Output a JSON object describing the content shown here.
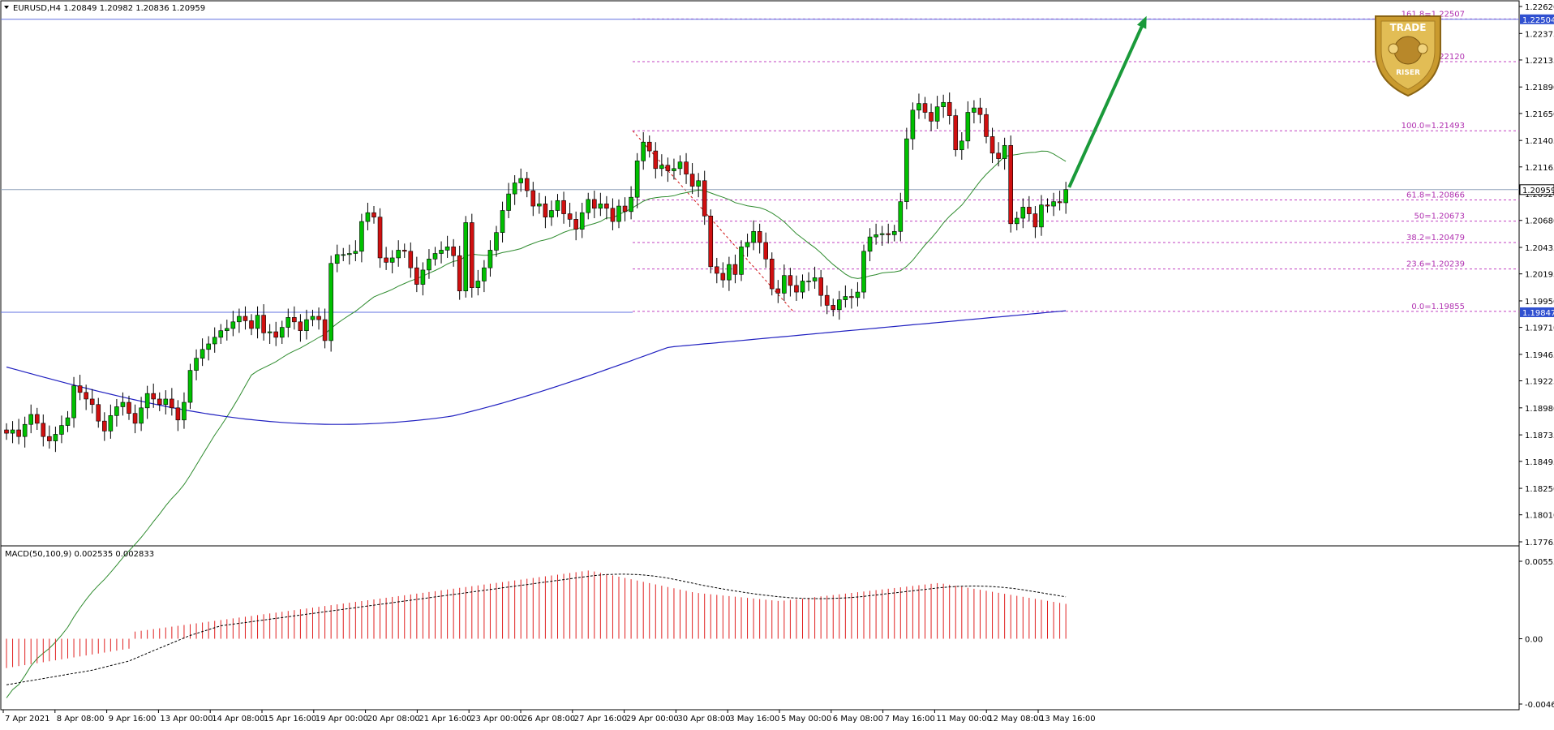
{
  "header": {
    "symbol_info": "EURUSD,H4  1.20849 1.20982 1.20836 1.20959",
    "macd_info": "MACD(50,100,9) 0.002535 0.002833"
  },
  "price_axis": {
    "ticks": [
      "1.22620",
      "1.22375",
      "1.22135",
      "1.21890",
      "1.21650",
      "1.21405",
      "1.21165",
      "1.20920",
      "1.20680",
      "1.20435",
      "1.20195",
      "1.19950",
      "1.19710",
      "1.19465",
      "1.19225",
      "1.18980",
      "1.18735",
      "1.18495",
      "1.18250",
      "1.18010",
      "1.17765"
    ],
    "price_max": 1.2262,
    "price_min": 1.17765,
    "current_price_label": "1.20959",
    "current_price": 1.20959,
    "hline_upper_label": "1.22504",
    "hline_upper": 1.22504,
    "hline_lower_label": "1.19847",
    "hline_lower": 1.19847
  },
  "macd_axis": {
    "ticks": [
      "0.005553",
      "0.00",
      "-0.00468"
    ],
    "max": 0.005553,
    "min": -0.00468
  },
  "time_axis": {
    "labels": [
      "7 Apr 2021",
      "8 Apr 08:00",
      "9 Apr 16:00",
      "13 Apr 00:00",
      "14 Apr 08:00",
      "15 Apr 16:00",
      "19 Apr 00:00",
      "20 Apr 08:00",
      "21 Apr 16:00",
      "23 Apr 00:00",
      "26 Apr 08:00",
      "27 Apr 16:00",
      "29 Apr 00:00",
      "30 Apr 08:00",
      "3 May 16:00",
      "5 May 00:00",
      "6 May 08:00",
      "7 May 16:00",
      "11 May 00:00",
      "12 May 08:00",
      "13 May 16:00"
    ]
  },
  "fibonacci": [
    {
      "label": "161.8=1.22507",
      "price": 1.22507
    },
    {
      "label": "138.2=1.22120",
      "price": 1.2212
    },
    {
      "label": "100.0=1.21493",
      "price": 1.21493
    },
    {
      "label": "61.8=1.20866",
      "price": 1.20866
    },
    {
      "label": "50=1.20673",
      "price": 1.20673
    },
    {
      "label": "38.2=1.20479",
      "price": 1.20479
    },
    {
      "label": "23.6=1.20239",
      "price": 1.20239
    },
    {
      "label": "0.0=1.19855",
      "price": 1.19855
    }
  ],
  "logo": {
    "top_text": "TRADE",
    "bottom_text": "RISER",
    "color": "#c99a2e"
  },
  "colors": {
    "bull": "#00c000",
    "bear": "#d01010",
    "ma_fast": "#2e8b2e",
    "ma_slow": "#2020c0",
    "arrow": "#1a9a3a",
    "fib": "#c040c0",
    "hist": "#e02020"
  },
  "chart_data": {
    "type": "candlestick",
    "symbol": "EURUSD",
    "timeframe": "H4",
    "closes": [
      1.1875,
      1.1878,
      1.1872,
      1.1883,
      1.1892,
      1.1884,
      1.1872,
      1.1868,
      1.1874,
      1.1882,
      1.1889,
      1.1918,
      1.1912,
      1.1906,
      1.1901,
      1.1886,
      1.1877,
      1.1891,
      1.1899,
      1.1903,
      1.1893,
      1.1884,
      1.1898,
      1.1911,
      1.1906,
      1.1901,
      1.1906,
      1.1898,
      1.1887,
      1.1903,
      1.1932,
      1.1943,
      1.1951,
      1.1956,
      1.1962,
      1.1968,
      1.197,
      1.1976,
      1.1981,
      1.1977,
      1.197,
      1.1982,
      1.1966,
      1.1967,
      1.1962,
      1.1971,
      1.198,
      1.1976,
      1.1968,
      1.1978,
      1.1981,
      1.1978,
      1.1959,
      1.2029,
      1.2037,
      1.2037,
      1.2038,
      1.204,
      1.2067,
      1.2075,
      1.2071,
      1.2034,
      1.203,
      1.2034,
      1.2041,
      1.204,
      1.2025,
      1.201,
      1.2023,
      1.2033,
      1.2038,
      1.2041,
      1.2044,
      1.2036,
      1.2004,
      1.2066,
      1.2007,
      1.2013,
      1.2025,
      1.2041,
      1.2057,
      1.2077,
      1.2092,
      1.2102,
      1.2106,
      1.2095,
      1.2081,
      1.2083,
      1.2071,
      1.2077,
      1.2086,
      1.2074,
      1.2069,
      1.206,
      1.2075,
      1.2087,
      1.2079,
      1.2083,
      1.2079,
      1.2067,
      1.2081,
      1.2076,
      1.2089,
      1.2122,
      1.2139,
      1.2131,
      1.2115,
      1.2118,
      1.2113,
      1.2115,
      1.2121,
      1.211,
      1.2099,
      1.2104,
      1.2072,
      1.2026,
      1.202,
      1.2014,
      1.2028,
      1.2019,
      1.2044,
      1.2048,
      1.2058,
      1.2048,
      1.2033,
      1.2006,
      1.2002,
      1.2018,
      1.2009,
      1.2003,
      1.2013,
      1.2013,
      1.2016,
      1.2,
      1.1991,
      1.1987,
      1.1996,
      1.1999,
      1.1998,
      1.2003,
      1.204,
      1.2053,
      1.2055,
      1.2056,
      1.2055,
      1.2058,
      1.2085,
      1.2142,
      1.2168,
      1.2174,
      1.2166,
      1.2158,
      1.2171,
      1.2175,
      1.2163,
      1.2132,
      1.214,
      1.2166,
      1.217,
      1.2164,
      1.2144,
      1.2129,
      1.2124,
      1.2136,
      1.2065,
      1.207,
      1.208,
      1.2074,
      1.2062,
      1.2082,
      1.2081,
      1.2085,
      1.2084,
      1.2096
    ],
    "indicators": {
      "ma_fast": "green moving average",
      "ma_slow": "blue moving average",
      "macd_params": "MACD(50,100,9)",
      "macd_main": 0.002535,
      "macd_signal": 0.002833
    },
    "ylim": [
      1.17765,
      1.2262
    ],
    "grid": false
  }
}
